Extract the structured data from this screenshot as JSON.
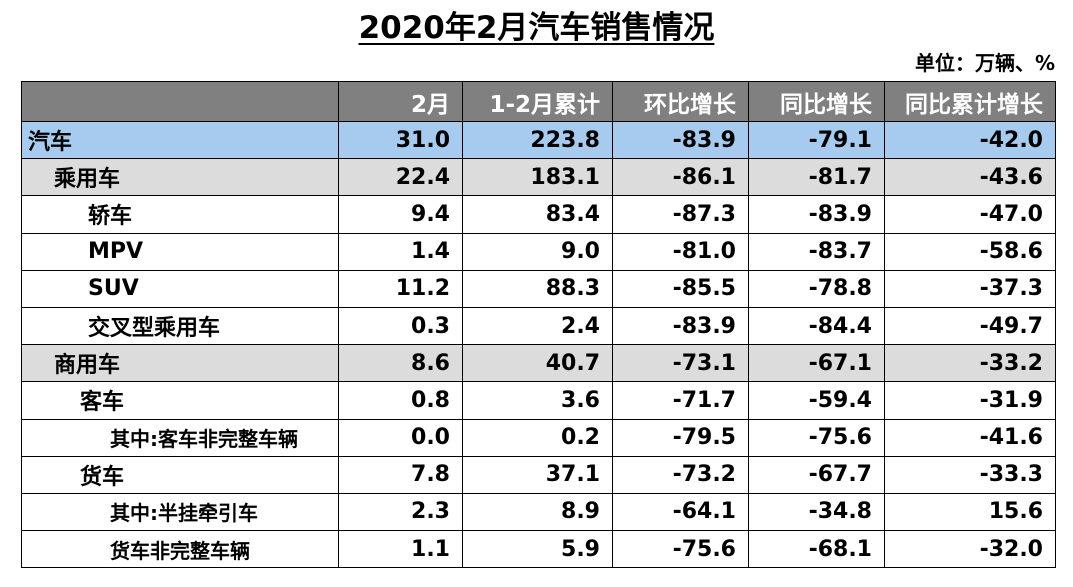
{
  "title": "2020年2月汽车销售情况",
  "unit_note": "单位：万辆、%",
  "chart_data": {
    "type": "table",
    "title": "2020年2月汽车销售情况",
    "unit": "单位：万辆、%",
    "columns": [
      "",
      "2月",
      "1-2月累计",
      "环比增长",
      "同比增长",
      "同比累计增长"
    ],
    "rows": [
      {
        "name": "汽车",
        "level": 0,
        "style": "highlight",
        "values": [
          "31.0",
          "223.8",
          "-83.9",
          "-79.1",
          "-42.0"
        ]
      },
      {
        "name": "乘用车",
        "level": 1,
        "style": "sub",
        "values": [
          "22.4",
          "183.1",
          "-86.1",
          "-81.7",
          "-43.6"
        ]
      },
      {
        "name": "轿车",
        "level": 2,
        "style": "plain",
        "values": [
          "9.4",
          "83.4",
          "-87.3",
          "-83.9",
          "-47.0"
        ]
      },
      {
        "name": "MPV",
        "level": 2,
        "style": "plain",
        "values": [
          "1.4",
          "9.0",
          "-81.0",
          "-83.7",
          "-58.6"
        ]
      },
      {
        "name": "SUV",
        "level": 2,
        "style": "plain",
        "values": [
          "11.2",
          "88.3",
          "-85.5",
          "-78.8",
          "-37.3"
        ]
      },
      {
        "name": "交叉型乘用车",
        "level": 2,
        "style": "plain",
        "values": [
          "0.3",
          "2.4",
          "-83.9",
          "-84.4",
          "-49.7"
        ]
      },
      {
        "name": "商用车",
        "level": 1,
        "style": "sub",
        "values": [
          "8.6",
          "40.7",
          "-73.1",
          "-67.1",
          "-33.2"
        ]
      },
      {
        "name": "客车",
        "level": 2,
        "style": "plain",
        "values": [
          "0.8",
          "3.6",
          "-71.7",
          "-59.4",
          "-31.9"
        ]
      },
      {
        "name": "其中:客车非完整车辆",
        "level": 3,
        "style": "plain",
        "values": [
          "0.0",
          "0.2",
          "-79.5",
          "-75.6",
          "-41.6"
        ]
      },
      {
        "name": "货车",
        "level": 2,
        "style": "plain",
        "values": [
          "7.8",
          "37.1",
          "-73.2",
          "-67.7",
          "-33.3"
        ]
      },
      {
        "name": "其中:半挂牵引车",
        "level": 3,
        "style": "plain",
        "values": [
          "2.3",
          "8.9",
          "-64.1",
          "-34.8",
          "15.6"
        ]
      },
      {
        "name": "货车非完整车辆",
        "level": 3,
        "style": "plain",
        "values": [
          "1.1",
          "5.9",
          "-75.6",
          "-68.1",
          "-32.0"
        ]
      }
    ]
  },
  "colors": {
    "header_bg": "#808080",
    "header_text": "#ffffff",
    "highlight_row": "#a6cbef",
    "sub_row": "#dcdcdc"
  }
}
